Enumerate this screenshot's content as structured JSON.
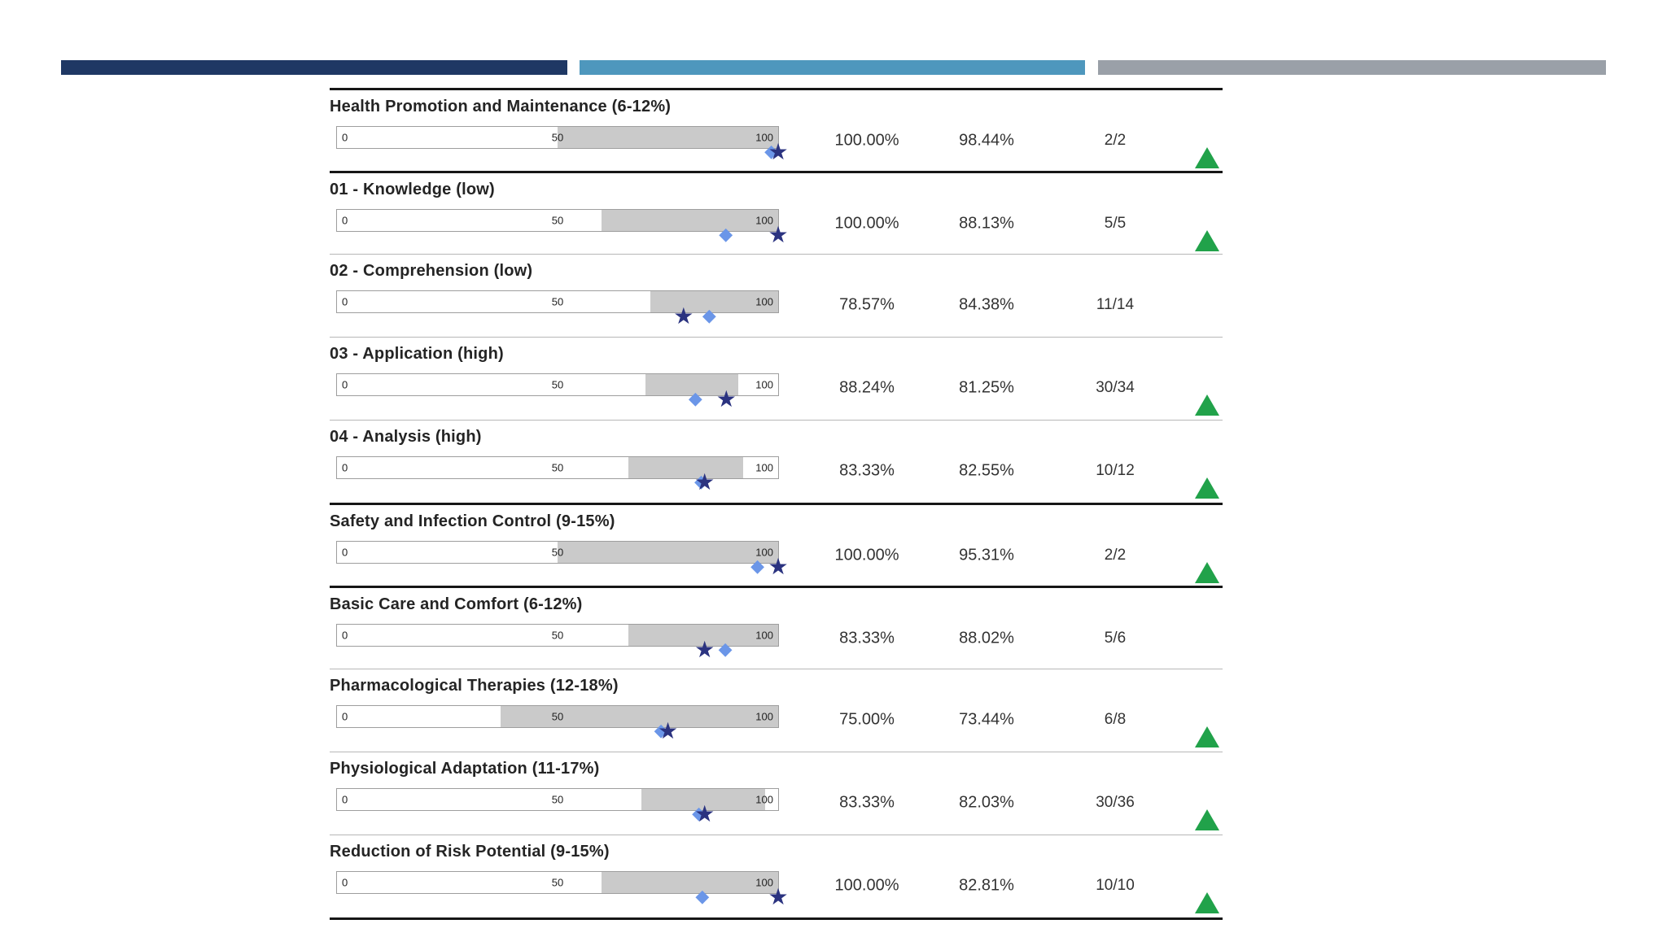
{
  "header": {
    "bars": [
      {
        "name": "navy-bar",
        "color": "#1f3864"
      },
      {
        "name": "blue-bar",
        "color": "#4e97bd"
      },
      {
        "name": "gray-bar",
        "color": "#9aa0a8"
      }
    ]
  },
  "table": {
    "scale_labels": {
      "min": "0",
      "mid": "50",
      "max": "100"
    },
    "legend": {
      "star_marker": "individual-score-marker",
      "diamond_marker": "comparison-mean-marker",
      "star_color": "#2b3380",
      "diamond_color": "#6b96e8",
      "band_color": "#cacaca",
      "up_indicator_color": "#21a24a",
      "circle_indicator_color": "#f5a733"
    },
    "rows": [
      {
        "title": "Health Promotion and Maintenance (6-12%)",
        "individual_pct": "100.00%",
        "mean_pct": "98.44%",
        "ratio": "2/2",
        "indicator": "up",
        "band_start": 50,
        "band_end": 100,
        "star_value": 100,
        "diamond_value": 98.44,
        "divider": "thick"
      },
      {
        "title": "01 - Knowledge (low)",
        "individual_pct": "100.00%",
        "mean_pct": "88.13%",
        "ratio": "5/5",
        "indicator": "up",
        "band_start": 60,
        "band_end": 100,
        "star_value": 100,
        "diamond_value": 88.13,
        "divider": "thick"
      },
      {
        "title": "02 - Comprehension (low)",
        "individual_pct": "78.57%",
        "mean_pct": "84.38%",
        "ratio": "11/14",
        "indicator": "circle",
        "band_start": 71,
        "band_end": 100,
        "star_value": 78.57,
        "diamond_value": 84.38,
        "divider": "thin"
      },
      {
        "title": "03 - Application (high)",
        "individual_pct": "88.24%",
        "mean_pct": "81.25%",
        "ratio": "30/34",
        "indicator": "up",
        "band_start": 70,
        "band_end": 91,
        "star_value": 88.24,
        "diamond_value": 81.25,
        "divider": "thin"
      },
      {
        "title": "04 - Analysis (high)",
        "individual_pct": "83.33%",
        "mean_pct": "82.55%",
        "ratio": "10/12",
        "indicator": "up",
        "band_start": 66,
        "band_end": 92,
        "star_value": 83.33,
        "diamond_value": 82.55,
        "divider": "thin"
      },
      {
        "title": "Safety and Infection Control (9-15%)",
        "individual_pct": "100.00%",
        "mean_pct": "95.31%",
        "ratio": "2/2",
        "indicator": "up",
        "band_start": 50,
        "band_end": 100,
        "star_value": 100,
        "diamond_value": 95.31,
        "divider": "thick"
      },
      {
        "title": "Basic Care and Comfort (6-12%)",
        "individual_pct": "83.33%",
        "mean_pct": "88.02%",
        "ratio": "5/6",
        "indicator": "circle",
        "band_start": 66,
        "band_end": 100,
        "star_value": 83.33,
        "diamond_value": 88.02,
        "divider": "thick"
      },
      {
        "title": "Pharmacological Therapies (12-18%)",
        "individual_pct": "75.00%",
        "mean_pct": "73.44%",
        "ratio": "6/8",
        "indicator": "up",
        "band_start": 37,
        "band_end": 100,
        "star_value": 75,
        "diamond_value": 73.44,
        "divider": "thin"
      },
      {
        "title": "Physiological Adaptation (11-17%)",
        "individual_pct": "83.33%",
        "mean_pct": "82.03%",
        "ratio": "30/36",
        "indicator": "up",
        "band_start": 69,
        "band_end": 97,
        "star_value": 83.33,
        "diamond_value": 82.03,
        "divider": "thin"
      },
      {
        "title": "Reduction of Risk Potential (9-15%)",
        "individual_pct": "100.00%",
        "mean_pct": "82.81%",
        "ratio": "10/10",
        "indicator": "up",
        "band_start": 60,
        "band_end": 100,
        "star_value": 100,
        "diamond_value": 82.81,
        "divider": "thin"
      }
    ]
  }
}
